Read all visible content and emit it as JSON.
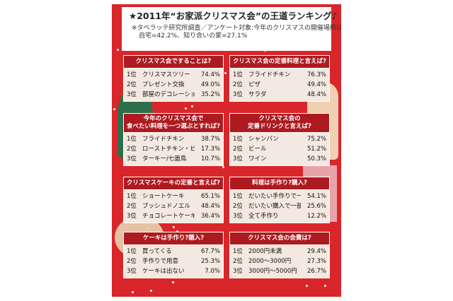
{
  "header": {
    "title": "★2011年“お家派クリスマス会”の王道ランキング♪",
    "note1": "※タベラッテ研究所調査／アンケート対象:今年のクリスマスの開催場所は?",
    "note2": "自宅=42.2%、知り合いの家=27.1%"
  },
  "cards": [
    {
      "title": "クリスマス会ですることは?",
      "rows": [
        {
          "rank": "1位",
          "label": "クリスマスツリー",
          "pct": "74.4%"
        },
        {
          "rank": "2位",
          "label": "プレゼント交換",
          "pct": "49.0%"
        },
        {
          "rank": "3位",
          "label": "部屋のデコレーション",
          "pct": "35.2%"
        }
      ]
    },
    {
      "title": "クリスマス会の定番料理と言えば?",
      "rows": [
        {
          "rank": "1位",
          "label": "フライドチキン",
          "pct": "76.3%"
        },
        {
          "rank": "2位",
          "label": "ピザ",
          "pct": "49.4%"
        },
        {
          "rank": "3位",
          "label": "サラダ",
          "pct": "48.4%"
        }
      ]
    },
    {
      "title": "今年のクリスマス会で",
      "title2": "食べたい料理を一つ選ぶとすれば?",
      "rows": [
        {
          "rank": "1位",
          "label": "フライドチキン",
          "pct": "38.7%"
        },
        {
          "rank": "2位",
          "label": "ローストチキン・ビーフ",
          "pct": "17.3%"
        },
        {
          "rank": "3位",
          "label": "ターキー/七面鳥",
          "pct": "10.7%"
        }
      ]
    },
    {
      "title": "クリスマス会の",
      "title2": "定番ドリンクと言えば?",
      "rows": [
        {
          "rank": "1位",
          "label": "シャンパン",
          "pct": "75.2%"
        },
        {
          "rank": "2位",
          "label": "ビール",
          "pct": "51.2%"
        },
        {
          "rank": "3位",
          "label": "ワイン",
          "pct": "50.3%"
        }
      ]
    },
    {
      "title": "クリスマスケーキの定番と言えば?",
      "rows": [
        {
          "rank": "1位",
          "label": "ショートケーキ",
          "pct": "65.1%"
        },
        {
          "rank": "2位",
          "label": "ブッシュドノエル",
          "pct": "48.4%"
        },
        {
          "rank": "3位",
          "label": "チョコレートケーキ",
          "pct": "36.4%"
        }
      ]
    },
    {
      "title": "料理は手作り?購入?",
      "rows": [
        {
          "rank": "1位",
          "label": "だいたい手作りで一部購入",
          "pct": "54.1%"
        },
        {
          "rank": "2位",
          "label": "だいたい購入で一部手作り",
          "pct": "25.6%"
        },
        {
          "rank": "3位",
          "label": "全て手作り",
          "pct": "12.2%"
        }
      ]
    },
    {
      "title": "ケーキは手作り?購入?",
      "rows": [
        {
          "rank": "1位",
          "label": "買ってくる",
          "pct": "67.7%"
        },
        {
          "rank": "2位",
          "label": "手作りで用意",
          "pct": "25.3%"
        },
        {
          "rank": "3位",
          "label": "ケーキは出ない",
          "pct": "7.0%"
        }
      ]
    },
    {
      "title": "クリスマス会の会費は?",
      "rows": [
        {
          "rank": "1位",
          "label": "2000円未満",
          "pct": "29.4%"
        },
        {
          "rank": "2位",
          "label": "2000〜3000円",
          "pct": "27.3%"
        },
        {
          "rank": "3位",
          "label": "3000円〜5000円",
          "pct": "26.7%"
        }
      ]
    }
  ]
}
